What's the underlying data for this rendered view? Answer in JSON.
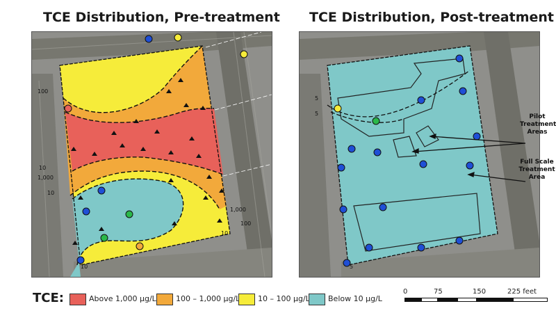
{
  "titles": {
    "left": "TCE Distribution, Pre-treatment",
    "right": "TCE Distribution, Post-treatment"
  },
  "legend": {
    "title": "TCE:",
    "items": [
      {
        "label": "Above 1,000 µg/L",
        "color": "#e8615a"
      },
      {
        "label": "100 – 1,000 µg/L",
        "color": "#f2a93b"
      },
      {
        "label": "10 – 100 µg/L",
        "color": "#f6ec3a"
      },
      {
        "label": "Below 10 µg/L",
        "color": "#7fc8c8"
      }
    ]
  },
  "scale": {
    "ticks": [
      "0",
      "75",
      "150",
      "225 feet"
    ]
  },
  "callouts": {
    "pilot": "Pilot\nTreatment\nAreas",
    "full": "Full Scale\nTreatment\nArea"
  },
  "contour_labels": {
    "left": [
      "100",
      "10",
      "1,000",
      "10",
      "1,000",
      "10",
      "10",
      "100"
    ],
    "right": [
      "5",
      "5",
      "5"
    ]
  },
  "colors": {
    "above_1000": "#e8615a",
    "c100_1000": "#f2a93b",
    "c10_100": "#f6ec3a",
    "below_10": "#7fc8c8",
    "basemap": "#8c8c88",
    "road": "#6e6e6a"
  }
}
